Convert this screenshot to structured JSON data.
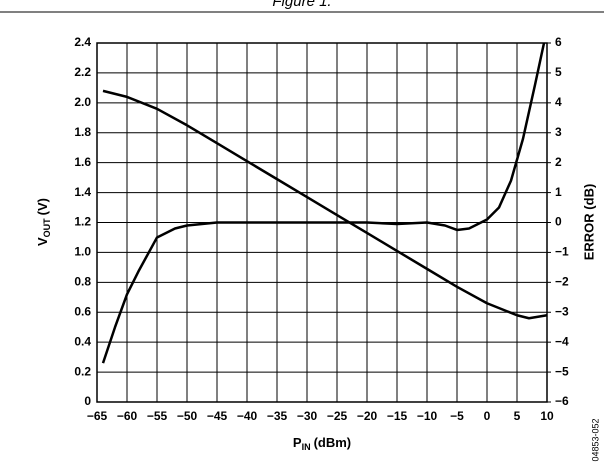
{
  "chart_data": {
    "type": "line",
    "title": "Figure 1.",
    "x_label": {
      "main": "P",
      "sub": "IN",
      "rest": "(dBm)"
    },
    "y_label": {
      "main": "V",
      "sub": "OUT",
      "rest": "(V)"
    },
    "y2_label": "ERROR (dB)",
    "side_note": "04853-052",
    "xlim": [
      -65,
      10
    ],
    "xticks": [
      {
        "value": -65,
        "label": "−65"
      },
      {
        "value": -60,
        "label": "−60"
      },
      {
        "value": -55,
        "label": "−55"
      },
      {
        "value": -50,
        "label": "−50"
      },
      {
        "value": -45,
        "label": "−45"
      },
      {
        "value": -40,
        "label": "−40"
      },
      {
        "value": -35,
        "label": "−35"
      },
      {
        "value": -30,
        "label": "−30"
      },
      {
        "value": -25,
        "label": "−25"
      },
      {
        "value": -20,
        "label": "−20"
      },
      {
        "value": -15,
        "label": "−15"
      },
      {
        "value": -10,
        "label": "−10"
      },
      {
        "value": -5,
        "label": "−5"
      },
      0,
      5,
      10
    ],
    "ylim": [
      0,
      2.4
    ],
    "yticks": [
      0,
      0.2,
      0.4,
      0.6,
      0.8,
      {
        "value": 1,
        "label": "1.0"
      },
      1.2,
      1.4,
      1.6,
      1.8,
      {
        "value": 2,
        "label": "2.0"
      },
      2.2,
      2.4
    ],
    "y2lim": [
      -6,
      6
    ],
    "y2ticks": [
      {
        "value": -6,
        "label": "−6"
      },
      {
        "value": -5,
        "label": "−5"
      },
      {
        "value": -4,
        "label": "−4"
      },
      {
        "value": -3,
        "label": "−3"
      },
      {
        "value": -2,
        "label": "−2"
      },
      {
        "value": -1,
        "label": "−1"
      },
      0,
      1,
      2,
      3,
      4,
      5,
      6
    ],
    "grid": true,
    "series": [
      {
        "color": "#000000",
        "x": [
          -64,
          -60,
          -55,
          -50,
          -45,
          -40,
          -35,
          -30,
          -25,
          -20,
          -15,
          -10,
          -5,
          0,
          5,
          7,
          10
        ],
        "values": [
          2.08,
          2.04,
          1.96,
          1.85,
          1.73,
          1.61,
          1.49,
          1.37,
          1.25,
          1.13,
          1.01,
          0.89,
          0.77,
          0.66,
          0.58,
          0.56,
          0.58
        ]
      },
      {
        "color": "#000000",
        "axis": "y2",
        "x": [
          -64,
          -62,
          -60,
          -58,
          -55,
          -52,
          -50,
          -45,
          -40,
          -35,
          -30,
          -25,
          -20,
          -15,
          -10,
          -7,
          -5,
          -3,
          0,
          2,
          4,
          6,
          8,
          9.5
        ],
        "values": [
          -4.7,
          -3.5,
          -2.4,
          -1.6,
          -0.5,
          -0.2,
          -0.1,
          0,
          0,
          0,
          0,
          0,
          0,
          -0.05,
          0,
          -0.1,
          -0.25,
          -0.2,
          0.1,
          0.5,
          1.4,
          2.8,
          4.6,
          6
        ]
      }
    ]
  }
}
